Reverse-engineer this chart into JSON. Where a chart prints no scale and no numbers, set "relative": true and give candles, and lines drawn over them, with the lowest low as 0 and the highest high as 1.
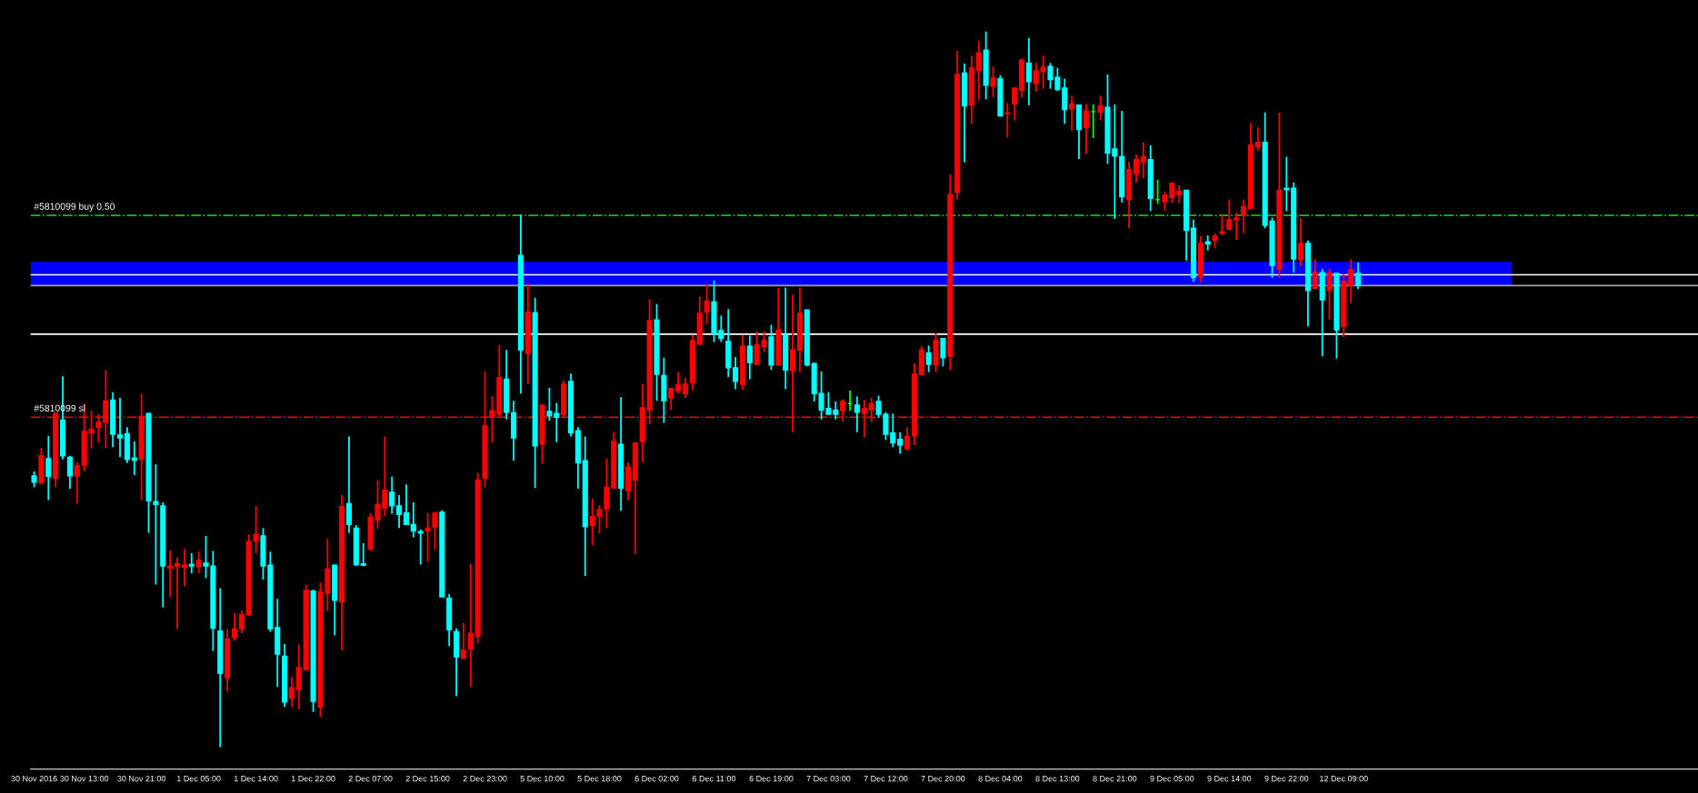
{
  "chart_data": {
    "type": "candlestick",
    "relative": true,
    "tick_labels": "x",
    "categories": [
      "30 Nov 2016",
      null,
      null,
      null,
      null,
      null,
      null,
      "30 Nov 13:00",
      null,
      null,
      null,
      null,
      null,
      null,
      null,
      "30 Nov 21:00",
      null,
      null,
      null,
      null,
      null,
      null,
      null,
      "1 Dec 05:00",
      null,
      null,
      null,
      null,
      null,
      null,
      null,
      "1 Dec 14:00",
      null,
      null,
      null,
      null,
      null,
      null,
      null,
      "1 Dec 22:00",
      null,
      null,
      null,
      null,
      null,
      null,
      null,
      "2 Dec 07:00",
      null,
      null,
      null,
      null,
      null,
      null,
      null,
      "2 Dec 15:00",
      null,
      null,
      null,
      null,
      null,
      null,
      null,
      "2 Dec 23:00",
      null,
      null,
      null,
      null,
      null,
      null,
      null,
      "5 Dec 10:00",
      null,
      null,
      null,
      null,
      null,
      null,
      null,
      "5 Dec 18:00",
      null,
      null,
      null,
      null,
      null,
      null,
      null,
      "6 Dec 02:00",
      null,
      null,
      null,
      null,
      null,
      null,
      null,
      "6 Dec 11:00",
      null,
      null,
      null,
      null,
      null,
      null,
      null,
      "6 Dec 19:00",
      null,
      null,
      null,
      null,
      null,
      null,
      null,
      "7 Dec 03:00",
      null,
      null,
      null,
      null,
      null,
      null,
      null,
      "7 Dec 12:00",
      null,
      null,
      null,
      null,
      null,
      null,
      null,
      "7 Dec 20:00",
      null,
      null,
      null,
      null,
      null,
      null,
      null,
      "8 Dec 04:00",
      null,
      null,
      null,
      null,
      null,
      null,
      null,
      "8 Dec 13:00",
      null,
      null,
      null,
      null,
      null,
      null,
      null,
      "8 Dec 21:00",
      null,
      null,
      null,
      null,
      null,
      null,
      null,
      "9 Dec 05:00",
      null,
      null,
      null,
      null,
      null,
      null,
      null,
      "9 Dec 14:00",
      null,
      null,
      null,
      null,
      null,
      null,
      null,
      "9 Dec 22:00",
      null,
      null,
      null,
      null,
      null,
      null,
      null,
      "12 Dec 09:00",
      null,
      null
    ],
    "ohlc": [
      [
        0.379,
        0.385,
        0.363,
        0.37
      ],
      [
        0.369,
        0.418,
        0.369,
        0.407
      ],
      [
        0.403,
        0.435,
        0.345,
        0.378
      ],
      [
        0.376,
        0.468,
        0.363,
        0.466
      ],
      [
        0.457,
        0.518,
        0.402,
        0.407
      ],
      [
        0.405,
        0.407,
        0.361,
        0.379
      ],
      [
        0.379,
        0.398,
        0.34,
        0.393
      ],
      [
        0.394,
        0.48,
        0.385,
        0.441
      ],
      [
        0.439,
        0.47,
        0.417,
        0.444
      ],
      [
        0.447,
        0.465,
        0.426,
        0.454
      ],
      [
        0.454,
        0.527,
        0.418,
        0.484
      ],
      [
        0.485,
        0.496,
        0.419,
        0.437
      ],
      [
        0.436,
        0.488,
        0.405,
        0.432
      ],
      [
        0.438,
        0.447,
        0.397,
        0.402
      ],
      [
        0.404,
        0.427,
        0.38,
        0.401
      ],
      [
        0.402,
        0.493,
        0.345,
        0.462
      ],
      [
        0.466,
        0.467,
        0.299,
        0.344
      ],
      [
        0.343,
        0.395,
        0.227,
        0.339
      ],
      [
        0.337,
        0.342,
        0.195,
        0.253
      ],
      [
        0.25,
        0.275,
        0.21,
        0.253
      ],
      [
        0.253,
        0.265,
        0.165,
        0.256
      ],
      [
        0.251,
        0.277,
        0.225,
        0.254
      ],
      [
        0.255,
        0.271,
        0.243,
        0.253
      ],
      [
        0.252,
        0.273,
        0.243,
        0.261
      ],
      [
        0.257,
        0.295,
        0.236,
        0.253
      ],
      [
        0.253,
        0.274,
        0.134,
        0.166
      ],
      [
        0.162,
        0.222,
        0.0,
        0.103
      ],
      [
        0.097,
        0.165,
        0.078,
        0.151
      ],
      [
        0.153,
        0.187,
        0.149,
        0.165
      ],
      [
        0.165,
        0.191,
        0.159,
        0.185
      ],
      [
        0.185,
        0.297,
        0.183,
        0.287
      ],
      [
        0.288,
        0.337,
        0.271,
        0.297
      ],
      [
        0.295,
        0.306,
        0.234,
        0.253
      ],
      [
        0.254,
        0.273,
        0.161,
        0.165
      ],
      [
        0.167,
        0.207,
        0.084,
        0.13
      ],
      [
        0.127,
        0.144,
        0.056,
        0.063
      ],
      [
        0.068,
        0.098,
        0.056,
        0.083
      ],
      [
        0.08,
        0.143,
        0.053,
        0.111
      ],
      [
        0.108,
        0.227,
        0.108,
        0.219
      ],
      [
        0.218,
        0.22,
        0.049,
        0.064
      ],
      [
        0.056,
        0.23,
        0.042,
        0.217
      ],
      [
        0.215,
        0.291,
        0.19,
        0.249
      ],
      [
        0.254,
        0.255,
        0.156,
        0.205
      ],
      [
        0.203,
        0.352,
        0.135,
        0.336
      ],
      [
        0.34,
        0.434,
        0.299,
        0.311
      ],
      [
        0.306,
        0.31,
        0.253,
        0.255
      ],
      [
        0.256,
        0.285,
        0.253,
        0.254
      ],
      [
        0.277,
        0.327,
        0.274,
        0.321
      ],
      [
        0.317,
        0.373,
        0.305,
        0.339
      ],
      [
        0.334,
        0.434,
        0.323,
        0.359
      ],
      [
        0.356,
        0.378,
        0.326,
        0.337
      ],
      [
        0.337,
        0.352,
        0.306,
        0.325
      ],
      [
        0.327,
        0.367,
        0.311,
        0.311
      ],
      [
        0.311,
        0.342,
        0.293,
        0.302
      ],
      [
        0.301,
        0.304,
        0.255,
        0.299
      ],
      [
        0.302,
        0.327,
        0.259,
        0.306
      ],
      [
        0.307,
        0.328,
        0.276,
        0.327
      ],
      [
        0.328,
        0.331,
        0.21,
        0.21
      ],
      [
        0.208,
        0.214,
        0.141,
        0.164
      ],
      [
        0.161,
        0.166,
        0.071,
        0.126
      ],
      [
        0.124,
        0.173,
        0.124,
        0.135
      ],
      [
        0.137,
        0.256,
        0.084,
        0.159
      ],
      [
        0.155,
        0.383,
        0.145,
        0.373
      ],
      [
        0.376,
        0.525,
        0.363,
        0.449
      ],
      [
        0.461,
        0.49,
        0.426,
        0.47
      ],
      [
        0.465,
        0.562,
        0.462,
        0.516
      ],
      [
        0.514,
        0.555,
        0.458,
        0.468
      ],
      [
        0.467,
        0.484,
        0.4,
        0.432
      ],
      [
        0.687,
        0.744,
        0.494,
        0.555
      ],
      [
        0.55,
        0.648,
        0.507,
        0.608
      ],
      [
        0.607,
        0.628,
        0.362,
        0.421
      ],
      [
        0.423,
        0.478,
        0.396,
        0.478
      ],
      [
        0.469,
        0.502,
        0.456,
        0.463
      ],
      [
        0.466,
        0.481,
        0.426,
        0.461
      ],
      [
        0.465,
        0.512,
        0.461,
        0.507
      ],
      [
        0.511,
        0.522,
        0.434,
        0.439
      ],
      [
        0.442,
        0.447,
        0.361,
        0.397
      ],
      [
        0.4,
        0.434,
        0.239,
        0.308
      ],
      [
        0.31,
        0.347,
        0.282,
        0.322
      ],
      [
        0.323,
        0.338,
        0.299,
        0.332
      ],
      [
        0.333,
        0.403,
        0.306,
        0.363
      ],
      [
        0.362,
        0.44,
        0.362,
        0.427
      ],
      [
        0.423,
        0.489,
        0.33,
        0.362
      ],
      [
        0.358,
        0.398,
        0.345,
        0.391
      ],
      [
        0.373,
        0.425,
        0.27,
        0.425
      ],
      [
        0.427,
        0.507,
        0.398,
        0.474
      ],
      [
        0.471,
        0.626,
        0.451,
        0.596
      ],
      [
        0.597,
        0.619,
        0.484,
        0.521
      ],
      [
        0.519,
        0.544,
        0.453,
        0.484
      ],
      [
        0.488,
        0.501,
        0.471,
        0.501
      ],
      [
        0.498,
        0.524,
        0.494,
        0.506
      ],
      [
        0.494,
        0.516,
        0.488,
        0.507
      ],
      [
        0.509,
        0.576,
        0.499,
        0.568
      ],
      [
        0.563,
        0.629,
        0.562,
        0.606
      ],
      [
        0.608,
        0.647,
        0.591,
        0.623
      ],
      [
        0.622,
        0.652,
        0.566,
        0.578
      ],
      [
        0.582,
        0.603,
        0.566,
        0.571
      ],
      [
        0.567,
        0.612,
        0.517,
        0.53
      ],
      [
        0.53,
        0.545,
        0.5,
        0.511
      ],
      [
        0.507,
        0.576,
        0.499,
        0.56
      ],
      [
        0.56,
        0.575,
        0.514,
        0.537
      ],
      [
        0.535,
        0.581,
        0.535,
        0.562
      ],
      [
        0.56,
        0.581,
        0.552,
        0.568
      ],
      [
        0.573,
        0.59,
        0.527,
        0.534
      ],
      [
        0.534,
        0.641,
        0.534,
        0.583
      ],
      [
        0.576,
        0.642,
        0.5,
        0.527
      ],
      [
        0.526,
        0.632,
        0.44,
        0.555
      ],
      [
        0.555,
        0.642,
        0.524,
        0.606
      ],
      [
        0.611,
        0.611,
        0.532,
        0.534
      ],
      [
        0.536,
        0.537,
        0.483,
        0.494
      ],
      [
        0.494,
        0.525,
        0.458,
        0.471
      ],
      [
        0.473,
        0.496,
        0.465,
        0.465
      ],
      [
        0.471,
        0.483,
        0.458,
        0.465
      ],
      [
        0.47,
        0.486,
        0.455,
        0.483
      ],
      [
        0.48,
        0.498,
        0.47,
        0.48
      ],
      [
        0.478,
        0.49,
        0.44,
        0.468
      ],
      [
        0.466,
        0.485,
        0.433,
        0.473
      ],
      [
        0.471,
        0.488,
        0.454,
        0.48
      ],
      [
        0.483,
        0.491,
        0.46,
        0.465
      ],
      [
        0.465,
        0.468,
        0.429,
        0.437
      ],
      [
        0.439,
        0.466,
        0.419,
        0.425
      ],
      [
        0.43,
        0.44,
        0.41,
        0.422
      ],
      [
        0.417,
        0.447,
        0.414,
        0.434
      ],
      [
        0.435,
        0.536,
        0.422,
        0.521
      ],
      [
        0.521,
        0.56,
        0.52,
        0.555
      ],
      [
        0.551,
        0.561,
        0.524,
        0.535
      ],
      [
        0.534,
        0.578,
        0.524,
        0.568
      ],
      [
        0.571,
        0.571,
        0.532,
        0.544
      ],
      [
        0.546,
        0.8,
        0.527,
        0.772
      ],
      [
        0.775,
        0.973,
        0.765,
        0.94
      ],
      [
        0.942,
        0.955,
        0.817,
        0.896
      ],
      [
        0.897,
        0.966,
        0.871,
        0.949
      ],
      [
        0.946,
        0.987,
        0.904,
        0.97
      ],
      [
        0.974,
        1.0,
        0.905,
        0.925
      ],
      [
        0.924,
        0.951,
        0.908,
        0.935
      ],
      [
        0.934,
        0.939,
        0.881,
        0.882
      ],
      [
        0.885,
        0.9,
        0.852,
        0.886
      ],
      [
        0.899,
        0.921,
        0.876,
        0.921
      ],
      [
        0.918,
        0.962,
        0.908,
        0.96
      ],
      [
        0.956,
        0.991,
        0.897,
        0.93
      ],
      [
        0.927,
        0.956,
        0.916,
        0.945
      ],
      [
        0.944,
        0.966,
        0.92,
        0.95
      ],
      [
        0.951,
        0.956,
        0.92,
        0.933
      ],
      [
        0.936,
        0.949,
        0.917,
        0.919
      ],
      [
        0.921,
        0.934,
        0.871,
        0.891
      ],
      [
        0.892,
        0.91,
        0.861,
        0.899
      ],
      [
        0.897,
        0.897,
        0.822,
        0.863
      ],
      [
        0.866,
        0.899,
        0.829,
        0.889
      ],
      [
        0.888,
        0.898,
        0.851,
        0.888
      ],
      [
        0.887,
        0.91,
        0.876,
        0.896
      ],
      [
        0.894,
        0.94,
        0.815,
        0.83
      ],
      [
        0.836,
        0.898,
        0.738,
        0.826
      ],
      [
        0.825,
        0.889,
        0.761,
        0.769
      ],
      [
        0.765,
        0.818,
        0.725,
        0.807
      ],
      [
        0.801,
        0.828,
        0.789,
        0.821
      ],
      [
        0.817,
        0.845,
        0.795,
        0.825
      ],
      [
        0.821,
        0.841,
        0.749,
        0.767
      ],
      [
        0.765,
        0.793,
        0.759,
        0.765
      ],
      [
        0.762,
        0.776,
        0.749,
        0.771
      ],
      [
        0.768,
        0.789,
        0.76,
        0.788
      ],
      [
        0.772,
        0.785,
        0.76,
        0.777
      ],
      [
        0.778,
        0.778,
        0.68,
        0.722
      ],
      [
        0.725,
        0.737,
        0.65,
        0.656
      ],
      [
        0.657,
        0.714,
        0.649,
        0.704
      ],
      [
        0.706,
        0.715,
        0.694,
        0.703
      ],
      [
        0.708,
        0.718,
        0.697,
        0.714
      ],
      [
        0.718,
        0.743,
        0.715,
        0.72
      ],
      [
        0.724,
        0.765,
        0.722,
        0.737
      ],
      [
        0.737,
        0.747,
        0.709,
        0.739
      ],
      [
        0.743,
        0.765,
        0.718,
        0.755
      ],
      [
        0.753,
        0.872,
        0.752,
        0.841
      ],
      [
        0.839,
        0.866,
        0.833,
        0.845
      ],
      [
        0.845,
        0.887,
        0.725,
        0.729
      ],
      [
        0.735,
        0.74,
        0.656,
        0.673
      ],
      [
        0.668,
        0.887,
        0.656,
        0.778
      ],
      [
        0.781,
        0.825,
        0.749,
        0.779
      ],
      [
        0.781,
        0.789,
        0.663,
        0.682
      ],
      [
        0.681,
        0.739,
        0.672,
        0.704
      ],
      [
        0.704,
        0.708,
        0.588,
        0.638
      ],
      [
        0.641,
        0.682,
        0.64,
        0.664
      ],
      [
        0.663,
        0.668,
        0.546,
        0.625
      ],
      [
        0.638,
        0.669,
        0.597,
        0.663
      ],
      [
        0.662,
        0.662,
        0.543,
        0.583
      ],
      [
        0.588,
        0.662,
        0.573,
        0.651
      ],
      [
        0.645,
        0.682,
        0.62,
        0.667
      ],
      [
        0.662,
        0.677,
        0.64,
        0.645
      ]
    ],
    "colors": [
      "#00ffff",
      "#ff0000",
      "#00ffff",
      "#ff0000",
      "#00ffff",
      "#00ffff",
      "#ff0000",
      "#ff0000",
      "#ff0000",
      "#ff0000",
      "#ff0000",
      "#00ffff",
      "#00ffff",
      "#00ffff",
      "#00ffff",
      "#ff0000",
      "#00ffff",
      "#00ffff",
      "#00ffff",
      "#ff0000",
      "#ff0000",
      "#ff0000",
      "#00ffff",
      "#ff0000",
      "#00ffff",
      "#00ffff",
      "#00ffff",
      "#ff0000",
      "#ff0000",
      "#ff0000",
      "#ff0000",
      "#ff0000",
      "#00ffff",
      "#00ffff",
      "#00ffff",
      "#00ffff",
      "#ff0000",
      "#ff0000",
      "#ff0000",
      "#00ffff",
      "#ff0000",
      "#ff0000",
      "#00ffff",
      "#ff0000",
      "#00ffff",
      "#00ffff",
      "#00ffff",
      "#ff0000",
      "#ff0000",
      "#ff0000",
      "#00ffff",
      "#00ffff",
      "#00ffff",
      "#00ffff",
      "#00ffff",
      "#ff0000",
      "#ff0000",
      "#00ffff",
      "#00ffff",
      "#00ffff",
      "#ff0000",
      "#ff0000",
      "#ff0000",
      "#ff0000",
      "#ff0000",
      "#ff0000",
      "#00ffff",
      "#00ffff",
      "#00ffff",
      "#ff0000",
      "#00ffff",
      "#ff0000",
      "#00ffff",
      "#00ffff",
      "#ff0000",
      "#00ffff",
      "#00ffff",
      "#00ffff",
      "#ff0000",
      "#ff0000",
      "#ff0000",
      "#ff0000",
      "#00ffff",
      "#ff0000",
      "#ff0000",
      "#ff0000",
      "#ff0000",
      "#00ffff",
      "#00ffff",
      "#ff0000",
      "#ff0000",
      "#ff0000",
      "#ff0000",
      "#ff0000",
      "#ff0000",
      "#00ffff",
      "#00ffff",
      "#00ffff",
      "#00ffff",
      "#ff0000",
      "#00ffff",
      "#ff0000",
      "#ff0000",
      "#00ffff",
      "#ff0000",
      "#00ffff",
      "#ff0000",
      "#ff0000",
      "#00ffff",
      "#00ffff",
      "#00ffff",
      "#00ffff",
      "#00ffff",
      "#ff0000",
      "#00ff00",
      "#00ffff",
      "#ff0000",
      "#ff0000",
      "#00ffff",
      "#00ffff",
      "#00ffff",
      "#00ffff",
      "#ff0000",
      "#ff0000",
      "#ff0000",
      "#00ffff",
      "#ff0000",
      "#00ffff",
      "#ff0000",
      "#ff0000",
      "#00ffff",
      "#ff0000",
      "#ff0000",
      "#00ffff",
      "#ff0000",
      "#00ffff",
      "#ff0000",
      "#ff0000",
      "#ff0000",
      "#00ffff",
      "#ff0000",
      "#ff0000",
      "#00ffff",
      "#00ffff",
      "#00ffff",
      "#ff0000",
      "#00ffff",
      "#ff0000",
      "#00ff00",
      "#ff0000",
      "#00ffff",
      "#00ffff",
      "#00ffff",
      "#ff0000",
      "#ff0000",
      "#ff0000",
      "#00ffff",
      "#00ff00",
      "#ff0000",
      "#ff0000",
      "#ff0000",
      "#00ffff",
      "#00ffff",
      "#ff0000",
      "#00ffff",
      "#ff0000",
      "#ff0000",
      "#ff0000",
      "#ff0000",
      "#ff0000",
      "#ff0000",
      "#ff0000",
      "#00ffff",
      "#00ffff",
      "#ff0000",
      "#00ffff",
      "#00ffff",
      "#ff0000",
      "#00ffff",
      "#ff0000",
      "#00ffff",
      "#ff0000",
      "#00ffff",
      "#ff0000",
      "#ff0000",
      "#00ffff"
    ],
    "ref_lines": [
      {
        "axis": "y",
        "value": 0.743,
        "label": "#5810099 buy 0.50",
        "color": "#00c800",
        "line_style": "dashdot"
      },
      {
        "axis": "y",
        "value": 0.461,
        "label": "#5810099 sl",
        "color": "#ff0000",
        "line_style": "dashdot"
      },
      {
        "axis": "y",
        "value": 0.66,
        "color": "#ffffff",
        "line_style": "solid"
      },
      {
        "axis": "y",
        "value": 0.645,
        "color": "#a0a0a0",
        "line_style": "solid"
      },
      {
        "axis": "y",
        "value": 0.577,
        "color": "#ffffff",
        "line_style": "solid"
      }
    ],
    "bands": [
      {
        "axis": "y",
        "from": 0.645,
        "to": 0.678,
        "color": "#0000ff"
      }
    ]
  }
}
